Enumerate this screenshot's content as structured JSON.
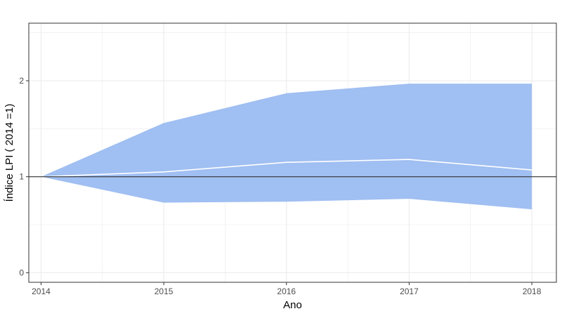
{
  "chart_data": {
    "type": "area",
    "title": "",
    "xlabel": "Ano",
    "ylabel": "Índice LPI ( 2014 =1)",
    "x": [
      2014,
      2015,
      2016,
      2017,
      2018
    ],
    "series": [
      {
        "name": "",
        "role": "central-line",
        "values": [
          1.0,
          1.05,
          1.15,
          1.18,
          1.07
        ]
      }
    ],
    "band": {
      "lower": [
        1.0,
        0.73,
        0.74,
        0.77,
        0.66
      ],
      "upper": [
        1.0,
        1.56,
        1.87,
        1.97,
        1.97
      ]
    },
    "reference_line": {
      "y": 1
    },
    "xlim": [
      2013.9,
      2018.2
    ],
    "ylim": [
      -0.1,
      2.6
    ],
    "xticks": [
      2014,
      2015,
      2016,
      2017,
      2018
    ],
    "xtick_labels": [
      "2014",
      "2015",
      "2016",
      "2017",
      "2018"
    ],
    "yticks": [
      0,
      1,
      2
    ],
    "ytick_labels": [
      "0",
      "1",
      "2"
    ],
    "grid": true,
    "legend": "none",
    "colors": {
      "band": "#a0bff2",
      "line": "#ffffff",
      "reference": "#333333",
      "grid": "#ebebeb",
      "panel_border": "#333333"
    }
  }
}
